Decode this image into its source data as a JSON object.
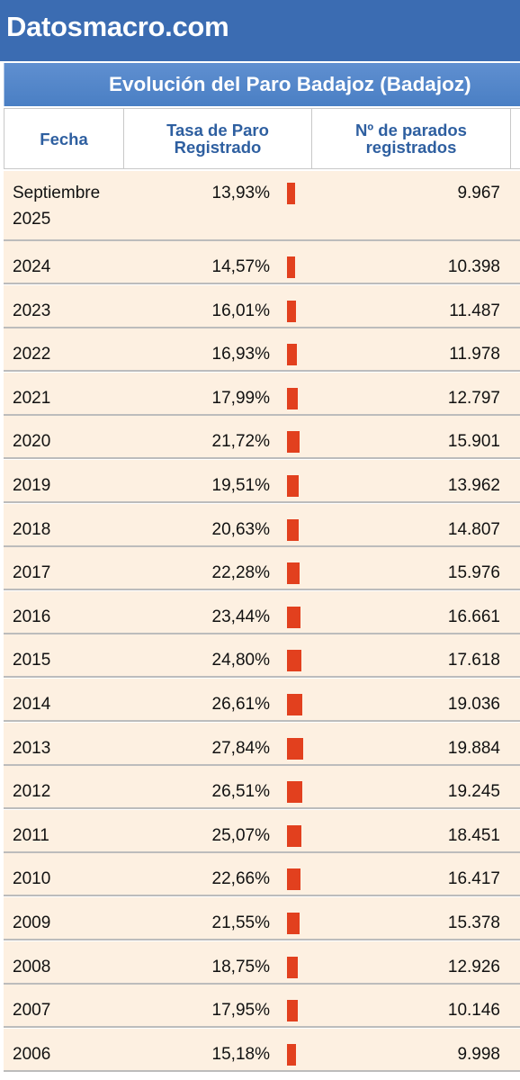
{
  "site": {
    "brand": "Datosmacro.com"
  },
  "table": {
    "title": "Evolución del Paro Badajoz (Badajoz)",
    "headers": {
      "fecha": "Fecha",
      "tasa_line1": "Tasa de Paro",
      "tasa_line2": "Registrado",
      "parados_line1": "Nº de parados",
      "parados_line2": "registrados"
    },
    "bar_color": "#e2401e",
    "rows": [
      {
        "fecha_line1": "Septiembre",
        "fecha_line2": "2025",
        "tasa": "13,93%",
        "tasa_value": 13.93,
        "parados": "9.967"
      },
      {
        "fecha_line1": "2024",
        "tasa": "14,57%",
        "tasa_value": 14.57,
        "parados": "10.398"
      },
      {
        "fecha_line1": "2023",
        "tasa": "16,01%",
        "tasa_value": 16.01,
        "parados": "11.487"
      },
      {
        "fecha_line1": "2022",
        "tasa": "16,93%",
        "tasa_value": 16.93,
        "parados": "11.978"
      },
      {
        "fecha_line1": "2021",
        "tasa": "17,99%",
        "tasa_value": 17.99,
        "parados": "12.797"
      },
      {
        "fecha_line1": "2020",
        "tasa": "21,72%",
        "tasa_value": 21.72,
        "parados": "15.901"
      },
      {
        "fecha_line1": "2019",
        "tasa": "19,51%",
        "tasa_value": 19.51,
        "parados": "13.962"
      },
      {
        "fecha_line1": "2018",
        "tasa": "20,63%",
        "tasa_value": 20.63,
        "parados": "14.807"
      },
      {
        "fecha_line1": "2017",
        "tasa": "22,28%",
        "tasa_value": 22.28,
        "parados": "15.976"
      },
      {
        "fecha_line1": "2016",
        "tasa": "23,44%",
        "tasa_value": 23.44,
        "parados": "16.661"
      },
      {
        "fecha_line1": "2015",
        "tasa": "24,80%",
        "tasa_value": 24.8,
        "parados": "17.618"
      },
      {
        "fecha_line1": "2014",
        "tasa": "26,61%",
        "tasa_value": 26.61,
        "parados": "19.036"
      },
      {
        "fecha_line1": "2013",
        "tasa": "27,84%",
        "tasa_value": 27.84,
        "parados": "19.884"
      },
      {
        "fecha_line1": "2012",
        "tasa": "26,51%",
        "tasa_value": 26.51,
        "parados": "19.245"
      },
      {
        "fecha_line1": "2011",
        "tasa": "25,07%",
        "tasa_value": 25.07,
        "parados": "18.451"
      },
      {
        "fecha_line1": "2010",
        "tasa": "22,66%",
        "tasa_value": 22.66,
        "parados": "16.417"
      },
      {
        "fecha_line1": "2009",
        "tasa": "21,55%",
        "tasa_value": 21.55,
        "parados": "15.378"
      },
      {
        "fecha_line1": "2008",
        "tasa": "18,75%",
        "tasa_value": 18.75,
        "parados": "12.926"
      },
      {
        "fecha_line1": "2007",
        "tasa": "17,95%",
        "tasa_value": 17.95,
        "parados": "10.146"
      },
      {
        "fecha_line1": "2006",
        "tasa": "15,18%",
        "tasa_value": 15.18,
        "parados": "9.998"
      }
    ]
  }
}
